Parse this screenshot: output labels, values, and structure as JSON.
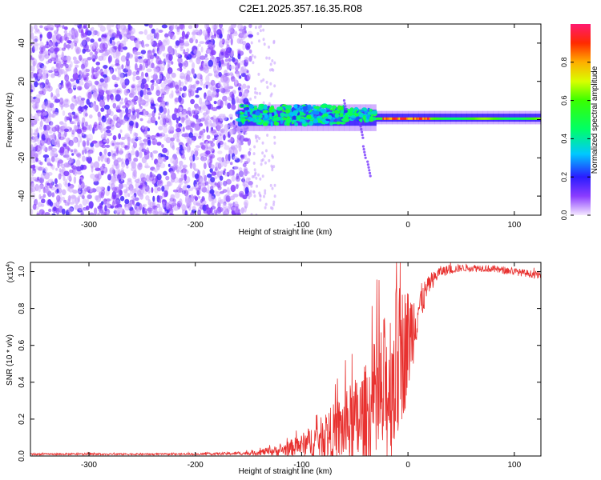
{
  "title": "C2E1.2025.357.16.35.R08",
  "chart_data": [
    {
      "type": "heatmap",
      "name": "spectrogram",
      "xlabel": "Height of straight line (km)",
      "ylabel": "Frequency (Hz)",
      "xlim": [
        -355,
        125
      ],
      "ylim": [
        -50,
        50
      ],
      "xticks": [
        -300,
        -200,
        -100,
        0,
        100
      ],
      "yticks": [
        -40,
        -20,
        0,
        20,
        40
      ],
      "colorbar": {
        "label": "Normalized spectral amplitude",
        "range": [
          0,
          1
        ],
        "ticks": [
          0.0,
          0.2,
          0.4,
          0.6,
          0.8
        ]
      },
      "regions": [
        {
          "description": "diffuse noise, low amplitude",
          "x": [
            -355,
            -148
          ],
          "freq": [
            -50,
            50
          ],
          "amplitude": [
            0.05,
            0.2
          ]
        },
        {
          "description": "carrier signal with scatter",
          "x": [
            -160,
            -30
          ],
          "freq": [
            -3,
            8
          ],
          "amplitude": [
            0.2,
            0.55
          ]
        },
        {
          "description": "stable carrier",
          "x": [
            -30,
            125
          ],
          "freq": [
            -2,
            2
          ],
          "amplitude": [
            0.5,
            0.95
          ]
        }
      ]
    },
    {
      "type": "line",
      "name": "snr",
      "xlabel": "Height of straight line (km)",
      "ylabel": "SNR (10 * v/v)",
      "scale_label": "(x10",
      "scale_exponent": "4",
      "scale_close": ")",
      "xlim": [
        -355,
        125
      ],
      "ylim": [
        0,
        1.05
      ],
      "xticks": [
        -300,
        -200,
        -100,
        0,
        100
      ],
      "yticks": [
        0.0,
        0.2,
        0.4,
        0.6,
        0.8,
        1.0
      ],
      "series": [
        {
          "name": "SNR",
          "color": "#e8312f",
          "x": [
            -355,
            -300,
            -200,
            -150,
            -120,
            -100,
            -80,
            -60,
            -40,
            -30,
            -20,
            -10,
            0,
            10,
            20,
            30,
            50,
            70,
            100,
            125
          ],
          "y": [
            0.01,
            0.01,
            0.01,
            0.015,
            0.03,
            0.06,
            0.1,
            0.15,
            0.2,
            0.25,
            0.35,
            0.5,
            0.62,
            0.8,
            0.93,
            1.0,
            1.02,
            1.02,
            1.0,
            0.98
          ],
          "noise_band": [
            0.005,
            0.005,
            0.005,
            0.01,
            0.03,
            0.06,
            0.12,
            0.2,
            0.3,
            0.4,
            0.45,
            0.45,
            0.3,
            0.12,
            0.05,
            0.03,
            0.02,
            0.02,
            0.02,
            0.02
          ]
        }
      ]
    }
  ]
}
